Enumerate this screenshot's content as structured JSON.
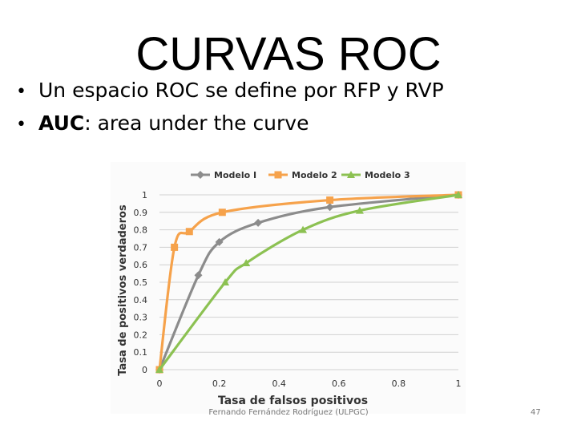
{
  "slide": {
    "title": "CURVAS ROC",
    "bullets": [
      {
        "bold": "",
        "text": "Un espacio ROC se define por RFP y RVP"
      },
      {
        "bold": "AUC",
        "text": ": area under the curve"
      }
    ],
    "footer": "Fernando Fernández Rodríguez (ULPGC)",
    "page_number": "47"
  },
  "chart_data": {
    "type": "line",
    "xlabel": "Tasa de falsos positivos",
    "ylabel": "Tasa de positivos verdaderos",
    "xlim": [
      0,
      1
    ],
    "ylim": [
      0,
      1
    ],
    "xticks": [
      "0",
      "0.2",
      "0.4",
      "0.6",
      "0.8",
      "1"
    ],
    "yticks": [
      "0",
      "0.1",
      "0.2",
      "0.3",
      "0.4",
      "0.5",
      "0.6",
      "0.7",
      "0.8",
      "0.9",
      "1"
    ],
    "grid": true,
    "legend_position": "top",
    "series": [
      {
        "name": "Modelo I",
        "color": "#8c8c8c",
        "marker": "diamond",
        "x": [
          0,
          0.13,
          0.2,
          0.33,
          0.57,
          1
        ],
        "y": [
          0,
          0.54,
          0.73,
          0.84,
          0.93,
          1
        ]
      },
      {
        "name": "Modelo 2",
        "color": "#f6a24b",
        "marker": "square",
        "x": [
          0,
          0.05,
          0.1,
          0.21,
          0.57,
          1
        ],
        "y": [
          0,
          0.7,
          0.79,
          0.9,
          0.97,
          1
        ]
      },
      {
        "name": "Modelo 3",
        "color": "#8cc152",
        "marker": "triangle",
        "x": [
          0,
          0.22,
          0.29,
          0.48,
          0.67,
          1
        ],
        "y": [
          0,
          0.5,
          0.61,
          0.8,
          0.91,
          1
        ]
      }
    ]
  }
}
